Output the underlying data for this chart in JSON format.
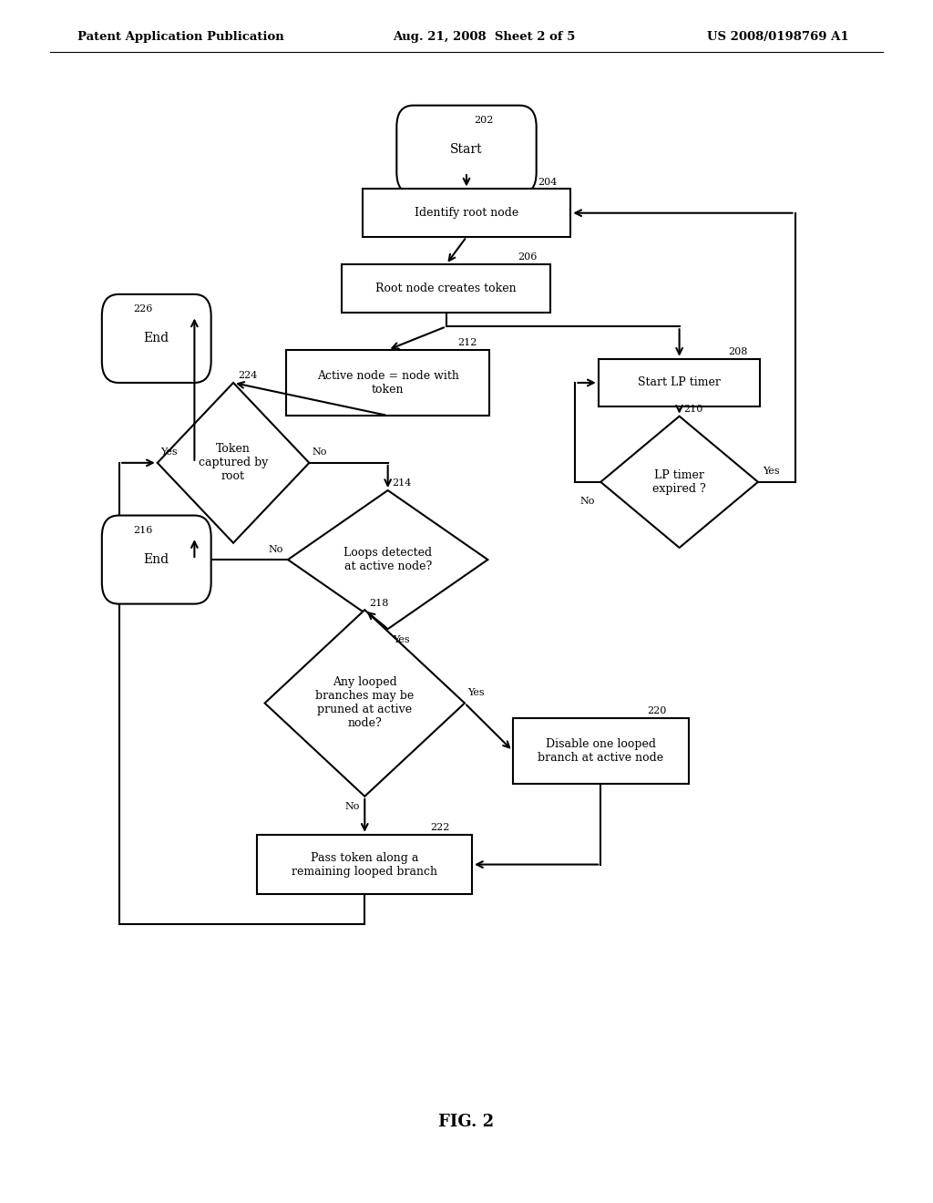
{
  "header_left": "Patent Application Publication",
  "header_mid": "Aug. 21, 2008  Sheet 2 of 5",
  "header_right": "US 2008/0198769 A1",
  "footer": "FIG. 2",
  "bg_color": "#ffffff",
  "line_color": "#000000"
}
